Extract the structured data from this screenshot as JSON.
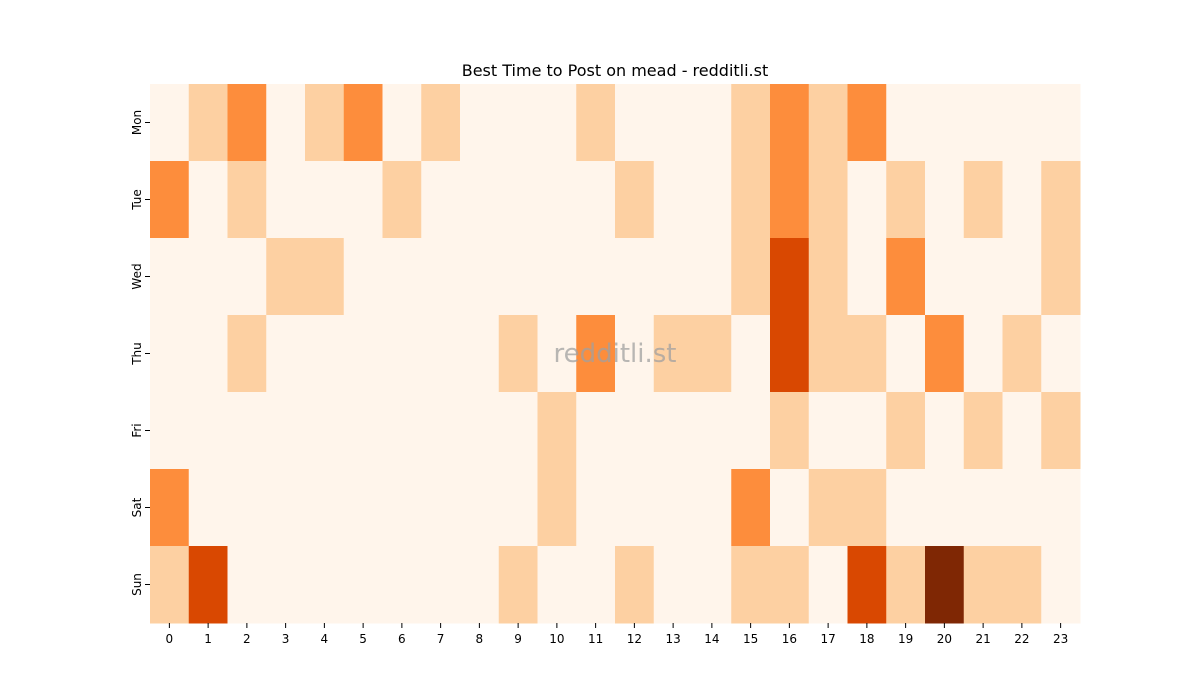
{
  "chart_data": {
    "type": "heatmap",
    "title": "Best Time to Post on mead - redditli.st",
    "watermark": "redditli.st",
    "x_categories": [
      "0",
      "1",
      "2",
      "3",
      "4",
      "5",
      "6",
      "7",
      "8",
      "9",
      "10",
      "11",
      "12",
      "13",
      "14",
      "15",
      "16",
      "17",
      "18",
      "19",
      "20",
      "21",
      "22",
      "23"
    ],
    "y_categories": [
      "Mon",
      "Tue",
      "Wed",
      "Thu",
      "Fri",
      "Sat",
      "Sun"
    ],
    "values": [
      [
        0,
        1,
        2,
        0,
        1,
        2,
        0,
        1,
        0,
        0,
        0,
        1,
        0,
        0,
        0,
        1,
        2,
        1,
        2,
        0,
        0,
        0,
        0,
        0
      ],
      [
        2,
        0,
        1,
        0,
        0,
        0,
        1,
        0,
        0,
        0,
        0,
        0,
        1,
        0,
        0,
        1,
        2,
        1,
        0,
        1,
        0,
        1,
        0,
        1
      ],
      [
        0,
        0,
        0,
        1,
        1,
        0,
        0,
        0,
        0,
        0,
        0,
        0,
        0,
        0,
        0,
        1,
        3,
        1,
        0,
        2,
        0,
        0,
        0,
        1
      ],
      [
        0,
        0,
        1,
        0,
        0,
        0,
        0,
        0,
        0,
        1,
        0,
        2,
        0,
        1,
        1,
        0,
        3,
        1,
        1,
        0,
        2,
        0,
        1,
        0
      ],
      [
        0,
        0,
        0,
        0,
        0,
        0,
        0,
        0,
        0,
        0,
        1,
        0,
        0,
        0,
        0,
        0,
        1,
        0,
        0,
        1,
        0,
        1,
        0,
        1
      ],
      [
        2,
        0,
        0,
        0,
        0,
        0,
        0,
        0,
        0,
        0,
        1,
        0,
        0,
        0,
        0,
        2,
        0,
        1,
        1,
        0,
        0,
        0,
        0,
        0
      ],
      [
        1,
        3,
        0,
        0,
        0,
        0,
        0,
        0,
        0,
        1,
        0,
        0,
        1,
        0,
        0,
        1,
        1,
        0,
        3,
        1,
        4,
        1,
        1,
        0
      ]
    ],
    "colormap": [
      "#fff5eb",
      "#fdd0a2",
      "#fd8d3c",
      "#d94801",
      "#7f2704"
    ],
    "grid": false,
    "legend": "none"
  }
}
